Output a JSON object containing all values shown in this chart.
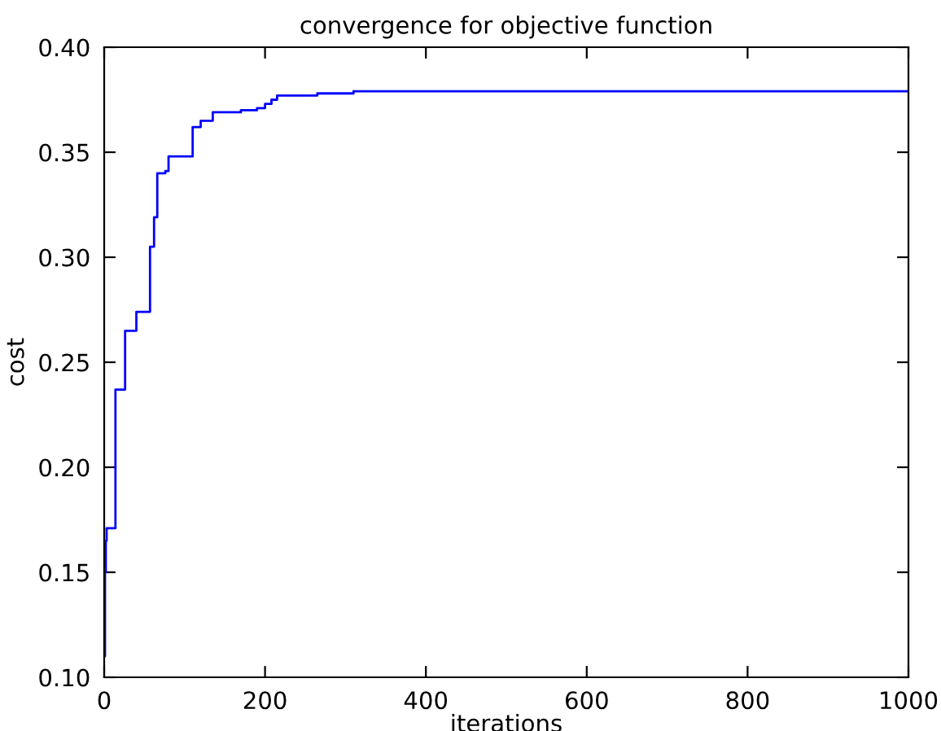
{
  "chart_data": {
    "type": "step",
    "title": "convergence for objective function",
    "xlabel": "iterations",
    "ylabel": "cost",
    "x": [
      0,
      1,
      2,
      3,
      14,
      26,
      40,
      57,
      62,
      66,
      76,
      80,
      110,
      120,
      135,
      170,
      190,
      200,
      208,
      215,
      265,
      310,
      1000
    ],
    "series": [
      {
        "color": "#0000ff",
        "values": [
          0.11,
          0.15,
          0.165,
          0.171,
          0.237,
          0.265,
          0.274,
          0.305,
          0.319,
          0.34,
          0.341,
          0.348,
          0.362,
          0.365,
          0.369,
          0.37,
          0.371,
          0.373,
          0.375,
          0.377,
          0.378,
          0.379,
          0.379
        ]
      }
    ],
    "xlim": [
      0,
      1000
    ],
    "xticks": [
      0,
      200,
      400,
      600,
      800,
      1000
    ],
    "ylim": [
      0.1,
      0.4
    ],
    "yticks": [
      {
        "value": 0.1,
        "label": "0.10"
      },
      {
        "value": 0.15,
        "label": "0.15"
      },
      {
        "value": 0.2,
        "label": "0.20"
      },
      {
        "value": 0.25,
        "label": "0.25"
      },
      {
        "value": 0.3,
        "label": "0.30"
      },
      {
        "value": 0.35,
        "label": "0.35"
      },
      {
        "value": 0.4,
        "label": "0.40"
      }
    ],
    "grid": false,
    "legend": false
  }
}
